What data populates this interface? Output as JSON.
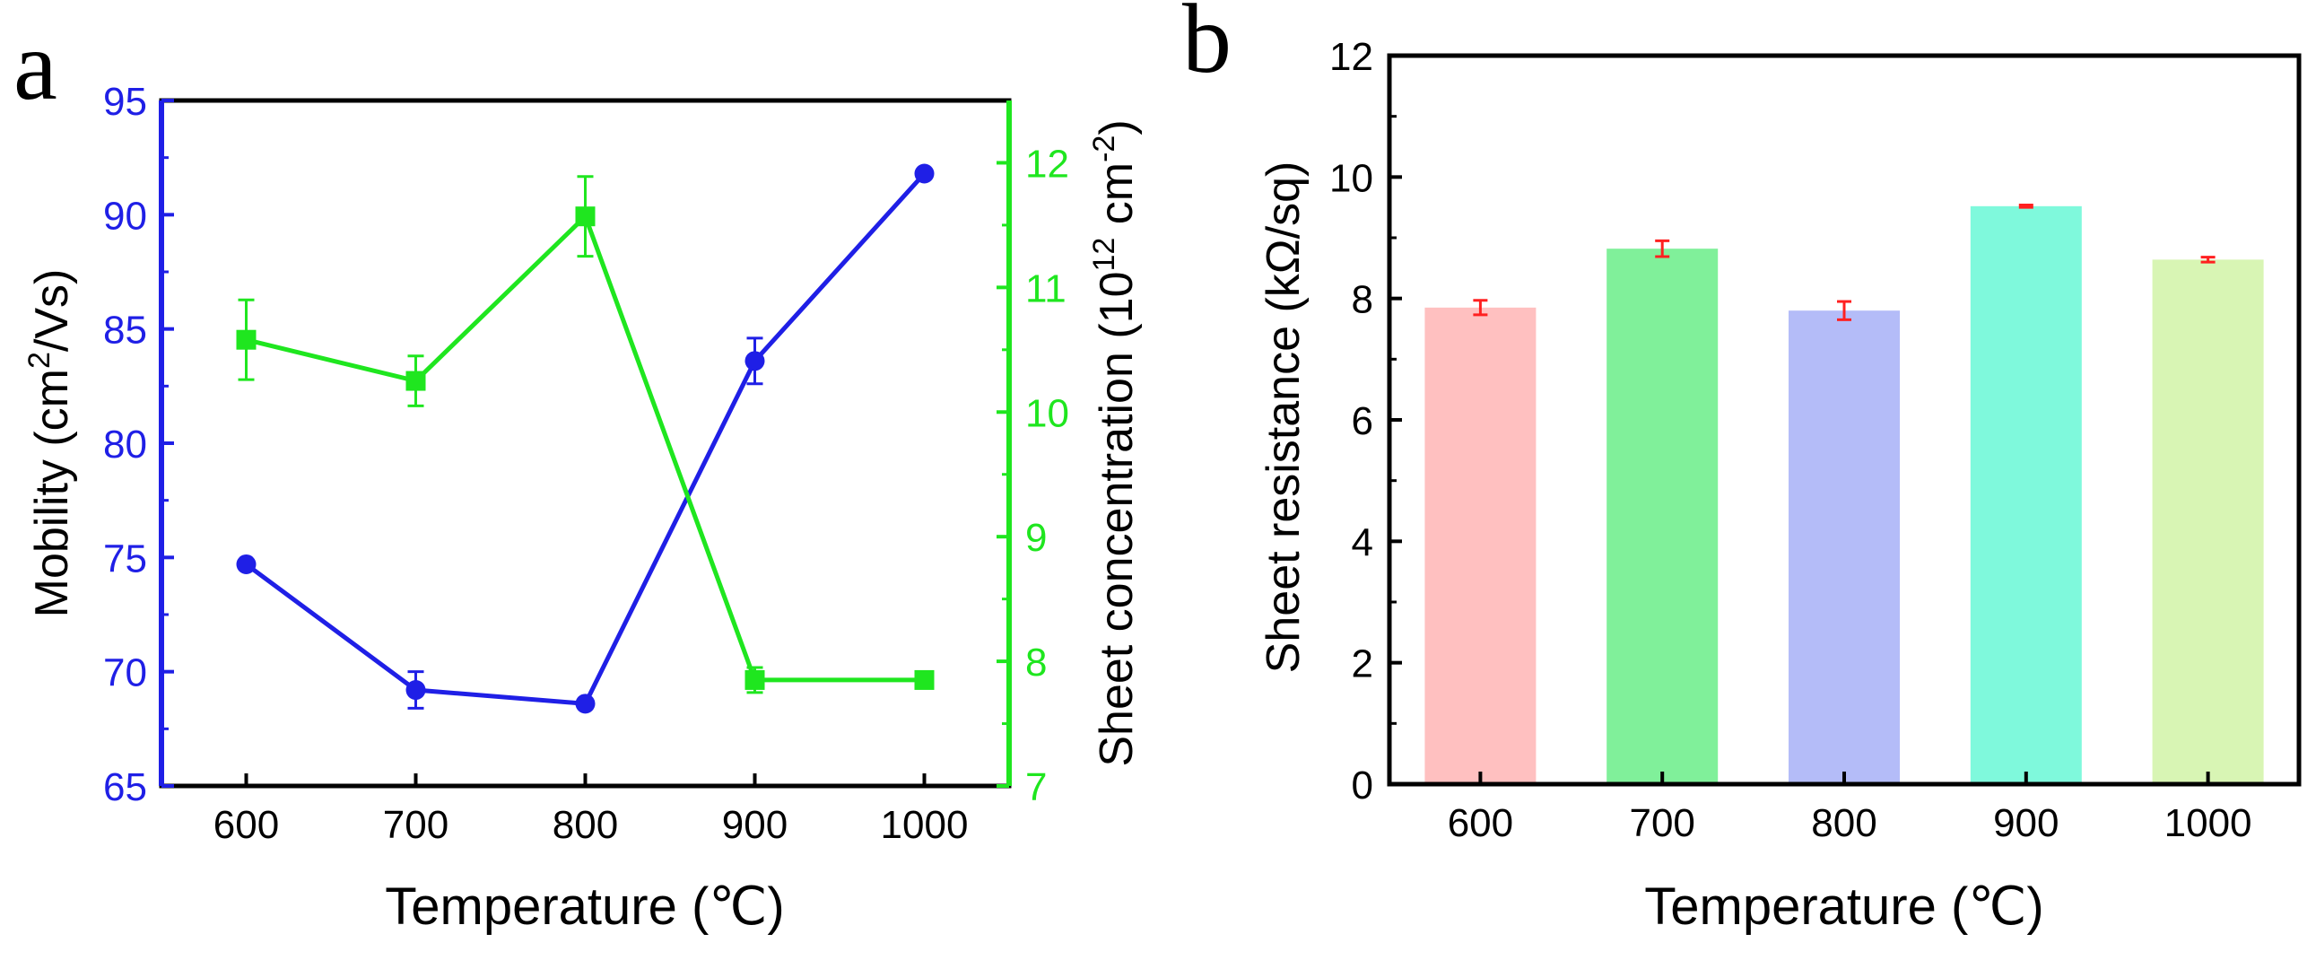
{
  "chart_data": [
    {
      "panel_label": "a",
      "type": "line",
      "x": [
        600,
        700,
        800,
        900,
        1000
      ],
      "xlabel": "Temperature (℃)",
      "xlim": [
        550,
        1050
      ],
      "xticks": [
        "600",
        "700",
        "800",
        "900",
        "1000"
      ],
      "series": [
        {
          "name": "Mobility",
          "axis": "left",
          "color": "#1f1fe6",
          "marker": "circle",
          "values": [
            74.7,
            69.2,
            68.6,
            83.6,
            91.8
          ],
          "errors": [
            0.0,
            0.8,
            0.0,
            1.0,
            0.0
          ]
        },
        {
          "name": "Sheet concentration",
          "axis": "right",
          "color": "#1fe61f",
          "marker": "square",
          "values": [
            10.58,
            10.25,
            11.57,
            7.85,
            7.85
          ],
          "errors": [
            0.32,
            0.2,
            0.32,
            0.1,
            0.0
          ]
        }
      ],
      "y_left": {
        "label_main": "Mobility (cm",
        "label_sup": "2",
        "label_end": "/Vs)",
        "lim": [
          65,
          95
        ],
        "ticks": [
          "65",
          "70",
          "75",
          "80",
          "85",
          "90",
          "95"
        ],
        "color": "#1f1fe6"
      },
      "y_right": {
        "label_main": "Sheet concentration (10",
        "label_sup1": "12",
        "label_mid": " cm",
        "label_sup2": "-2",
        "label_end": ")",
        "lim": [
          7,
          12.5
        ],
        "ticks": [
          "7",
          "8",
          "9",
          "10",
          "11",
          "12"
        ],
        "color": "#1fe61f"
      }
    },
    {
      "panel_label": "b",
      "type": "bar",
      "categories": [
        "600",
        "700",
        "800",
        "900",
        "1000"
      ],
      "values": [
        7.85,
        8.82,
        7.8,
        9.52,
        8.64
      ],
      "errors": [
        0.12,
        0.13,
        0.15,
        0.02,
        0.04
      ],
      "colors": [
        "#ffc0c0",
        "#80f09a",
        "#b4bcf8",
        "#7ff9dc",
        "#d8f5b4"
      ],
      "error_color": "#ff2020",
      "xlabel": "Temperature (℃)",
      "ylabel": "Sheet resistance (kΩ/sq)",
      "ylim": [
        0,
        12
      ],
      "yticks": [
        "0",
        "2",
        "4",
        "6",
        "8",
        "10",
        "12"
      ]
    }
  ]
}
